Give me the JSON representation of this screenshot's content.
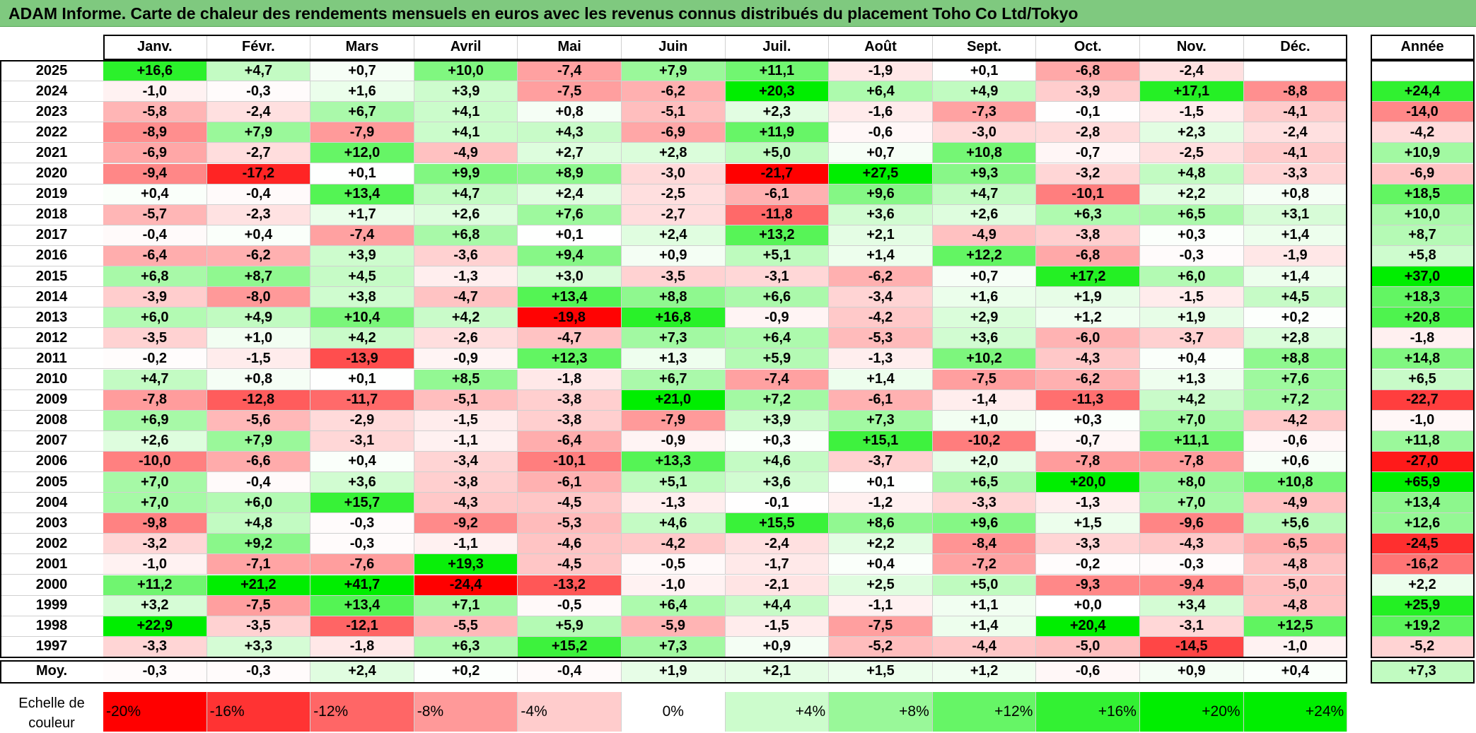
{
  "title": "ADAM Informe. Carte de chaleur des rendements mensuels en euros avec les revenus connus distribués du placement Toho Co Ltd/Tokyo",
  "colors": {
    "title_bg": "#7fc97f",
    "negative": "#ff0000",
    "zero": "#ffffff",
    "positive": "#00ee00"
  },
  "chart_data": {
    "type": "heatmap",
    "title": "ADAM Informe. Carte de chaleur des rendements mensuels en euros avec les revenus connus distribués du placement Toho Co Ltd/Tokyo",
    "months": [
      "Janv.",
      "Févr.",
      "Mars",
      "Avril",
      "Mai",
      "Juin",
      "Juil.",
      "Août",
      "Sept.",
      "Oct.",
      "Nov.",
      "Déc."
    ],
    "annual_label": "Année",
    "rows": [
      {
        "year": "2025",
        "values": [
          "+16,6",
          "+4,7",
          "+0,7",
          "+10,0",
          "-7,4",
          "+7,9",
          "+11,1",
          "-1,9",
          "+0,1",
          "-6,8",
          "-2,4",
          ""
        ],
        "annual": ""
      },
      {
        "year": "2024",
        "values": [
          "-1,0",
          "-0,3",
          "+1,6",
          "+3,9",
          "-7,5",
          "-6,2",
          "+20,3",
          "+6,4",
          "+4,9",
          "-3,9",
          "+17,1",
          "-8,8"
        ],
        "annual": "+24,4"
      },
      {
        "year": "2023",
        "values": [
          "-5,8",
          "-2,4",
          "+6,7",
          "+4,1",
          "+0,8",
          "-5,1",
          "+2,3",
          "-1,6",
          "-7,3",
          "-0,1",
          "-1,5",
          "-4,1"
        ],
        "annual": "-14,0"
      },
      {
        "year": "2022",
        "values": [
          "-8,9",
          "+7,9",
          "-7,9",
          "+4,1",
          "+4,3",
          "-6,9",
          "+11,9",
          "-0,6",
          "-3,0",
          "-2,8",
          "+2,3",
          "-2,4"
        ],
        "annual": "-4,2"
      },
      {
        "year": "2021",
        "values": [
          "-6,9",
          "-2,7",
          "+12,0",
          "-4,9",
          "+2,7",
          "+2,8",
          "+5,0",
          "+0,7",
          "+10,8",
          "-0,7",
          "-2,5",
          "-4,1"
        ],
        "annual": "+10,9"
      },
      {
        "year": "2020",
        "values": [
          "-9,4",
          "-17,2",
          "+0,1",
          "+9,9",
          "+8,9",
          "-3,0",
          "-21,7",
          "+27,5",
          "+9,3",
          "-3,2",
          "+4,8",
          "-3,3"
        ],
        "annual": "-6,9"
      },
      {
        "year": "2019",
        "values": [
          "+0,4",
          "-0,4",
          "+13,4",
          "+4,7",
          "+2,4",
          "-2,5",
          "-6,1",
          "+9,6",
          "+4,7",
          "-10,1",
          "+2,2",
          "+0,8"
        ],
        "annual": "+18,5"
      },
      {
        "year": "2018",
        "values": [
          "-5,7",
          "-2,3",
          "+1,7",
          "+2,6",
          "+7,6",
          "-2,7",
          "-11,8",
          "+3,6",
          "+2,6",
          "+6,3",
          "+6,5",
          "+3,1"
        ],
        "annual": "+10,0"
      },
      {
        "year": "2017",
        "values": [
          "-0,4",
          "+0,4",
          "-7,4",
          "+6,8",
          "+0,1",
          "+2,4",
          "+13,2",
          "+2,1",
          "-4,9",
          "-3,8",
          "+0,3",
          "+1,4"
        ],
        "annual": "+8,7"
      },
      {
        "year": "2016",
        "values": [
          "-6,4",
          "-6,2",
          "+3,9",
          "-3,6",
          "+9,4",
          "+0,9",
          "+5,1",
          "+1,4",
          "+12,2",
          "-6,8",
          "-0,3",
          "-1,9"
        ],
        "annual": "+5,8"
      },
      {
        "year": "2015",
        "values": [
          "+6,8",
          "+8,7",
          "+4,5",
          "-1,3",
          "+3,0",
          "-3,5",
          "-3,1",
          "-6,2",
          "+0,7",
          "+17,2",
          "+6,0",
          "+1,4"
        ],
        "annual": "+37,0"
      },
      {
        "year": "2014",
        "values": [
          "-3,9",
          "-8,0",
          "+3,8",
          "-4,7",
          "+13,4",
          "+8,8",
          "+6,6",
          "-3,4",
          "+1,6",
          "+1,9",
          "-1,5",
          "+4,5"
        ],
        "annual": "+18,3"
      },
      {
        "year": "2013",
        "values": [
          "+6,0",
          "+4,9",
          "+10,4",
          "+4,2",
          "-19,8",
          "+16,8",
          "-0,9",
          "-4,2",
          "+2,9",
          "+1,2",
          "+1,9",
          "+0,2"
        ],
        "annual": "+20,8"
      },
      {
        "year": "2012",
        "values": [
          "-3,5",
          "+1,0",
          "+4,2",
          "-2,6",
          "-4,7",
          "+7,3",
          "+6,4",
          "-5,3",
          "+3,6",
          "-6,0",
          "-3,7",
          "+2,8"
        ],
        "annual": "-1,8"
      },
      {
        "year": "2011",
        "values": [
          "-0,2",
          "-1,5",
          "-13,9",
          "-0,9",
          "+12,3",
          "+1,3",
          "+5,9",
          "-1,3",
          "+10,2",
          "-4,3",
          "+0,4",
          "+8,8"
        ],
        "annual": "+14,8"
      },
      {
        "year": "2010",
        "values": [
          "+4,7",
          "+0,8",
          "+0,1",
          "+8,5",
          "-1,8",
          "+6,7",
          "-7,4",
          "+1,4",
          "-7,5",
          "-6,2",
          "+1,3",
          "+7,6"
        ],
        "annual": "+6,5"
      },
      {
        "year": "2009",
        "values": [
          "-7,8",
          "-12,8",
          "-11,7",
          "-5,1",
          "-3,8",
          "+21,0",
          "+7,2",
          "-6,1",
          "-1,4",
          "-11,3",
          "+4,2",
          "+7,2"
        ],
        "annual": "-22,7"
      },
      {
        "year": "2008",
        "values": [
          "+6,9",
          "-5,6",
          "-2,9",
          "-1,5",
          "-3,8",
          "-7,9",
          "+3,9",
          "+7,3",
          "+1,0",
          "+0,3",
          "+7,0",
          "-4,2"
        ],
        "annual": "-1,0"
      },
      {
        "year": "2007",
        "values": [
          "+2,6",
          "+7,9",
          "-3,1",
          "-1,1",
          "-6,4",
          "-0,9",
          "+0,3",
          "+15,1",
          "-10,2",
          "-0,7",
          "+11,1",
          "-0,6"
        ],
        "annual": "+11,8"
      },
      {
        "year": "2006",
        "values": [
          "-10,0",
          "-6,6",
          "+0,4",
          "-3,4",
          "-10,1",
          "+13,3",
          "+4,6",
          "-3,7",
          "+2,0",
          "-7,8",
          "-7,8",
          "+0,6"
        ],
        "annual": "-27,0"
      },
      {
        "year": "2005",
        "values": [
          "+7,0",
          "-0,4",
          "+3,6",
          "-3,8",
          "-6,1",
          "+5,1",
          "+3,6",
          "+0,1",
          "+6,5",
          "+20,0",
          "+8,0",
          "+10,8"
        ],
        "annual": "+65,9"
      },
      {
        "year": "2004",
        "values": [
          "+7,0",
          "+6,0",
          "+15,7",
          "-4,3",
          "-4,5",
          "-1,3",
          "-0,1",
          "-1,2",
          "-3,3",
          "-1,3",
          "+7,0",
          "-4,9"
        ],
        "annual": "+13,4"
      },
      {
        "year": "2003",
        "values": [
          "-9,8",
          "+4,8",
          "-0,3",
          "-9,2",
          "-5,3",
          "+4,6",
          "+15,5",
          "+8,6",
          "+9,6",
          "+1,5",
          "-9,6",
          "+5,6"
        ],
        "annual": "+12,6"
      },
      {
        "year": "2002",
        "values": [
          "-3,2",
          "+9,2",
          "-0,3",
          "-1,1",
          "-4,6",
          "-4,2",
          "-2,4",
          "+2,2",
          "-8,4",
          "-3,3",
          "-4,3",
          "-6,5"
        ],
        "annual": "-24,5"
      },
      {
        "year": "2001",
        "values": [
          "-1,0",
          "-7,1",
          "-7,6",
          "+19,3",
          "-4,5",
          "-0,5",
          "-1,7",
          "+0,4",
          "-7,2",
          "-0,2",
          "-0,3",
          "-4,8"
        ],
        "annual": "-16,2"
      },
      {
        "year": "2000",
        "values": [
          "+11,2",
          "+21,2",
          "+41,7",
          "-24,4",
          "-13,2",
          "-1,0",
          "-2,1",
          "+2,5",
          "+5,0",
          "-9,3",
          "-9,4",
          "-5,0"
        ],
        "annual": "+2,2"
      },
      {
        "year": "1999",
        "values": [
          "+3,2",
          "-7,5",
          "+13,4",
          "+7,1",
          "-0,5",
          "+6,4",
          "+4,4",
          "-1,1",
          "+1,1",
          "+0,0",
          "+3,4",
          "-4,8"
        ],
        "annual": "+25,9"
      },
      {
        "year": "1998",
        "values": [
          "+22,9",
          "-3,5",
          "-12,1",
          "-5,5",
          "+5,9",
          "-5,9",
          "-1,5",
          "-7,5",
          "+1,4",
          "+20,4",
          "-3,1",
          "+12,5"
        ],
        "annual": "+19,2"
      },
      {
        "year": "1997",
        "values": [
          "-3,3",
          "+3,3",
          "-1,8",
          "+6,3",
          "+15,2",
          "+7,3",
          "+0,9",
          "-5,2",
          "-4,4",
          "-5,0",
          "-14,5",
          "-1,0"
        ],
        "annual": "-5,2"
      }
    ],
    "average": {
      "label": "Moy.",
      "values": [
        "-0,3",
        "-0,3",
        "+2,4",
        "+0,2",
        "-0,4",
        "+1,9",
        "+2,1",
        "+1,5",
        "+1,2",
        "-0,6",
        "+0,9",
        "+0,4"
      ],
      "annual": "+7,3"
    },
    "legend": {
      "title": "Echelle de couleur",
      "items": [
        {
          "label": "-20%",
          "value": -20
        },
        {
          "label": "-16%",
          "value": -16
        },
        {
          "label": "-12%",
          "value": -12
        },
        {
          "label": "-8%",
          "value": -8
        },
        {
          "label": "-4%",
          "value": -4
        },
        {
          "label": "0%",
          "value": 0
        },
        {
          "label": "+4%",
          "value": 4
        },
        {
          "label": "+8%",
          "value": 8
        },
        {
          "label": "+12%",
          "value": 12
        },
        {
          "label": "+16%",
          "value": 16
        },
        {
          "label": "+20%",
          "value": 20
        },
        {
          "label": "+24%",
          "value": 24
        }
      ]
    }
  }
}
